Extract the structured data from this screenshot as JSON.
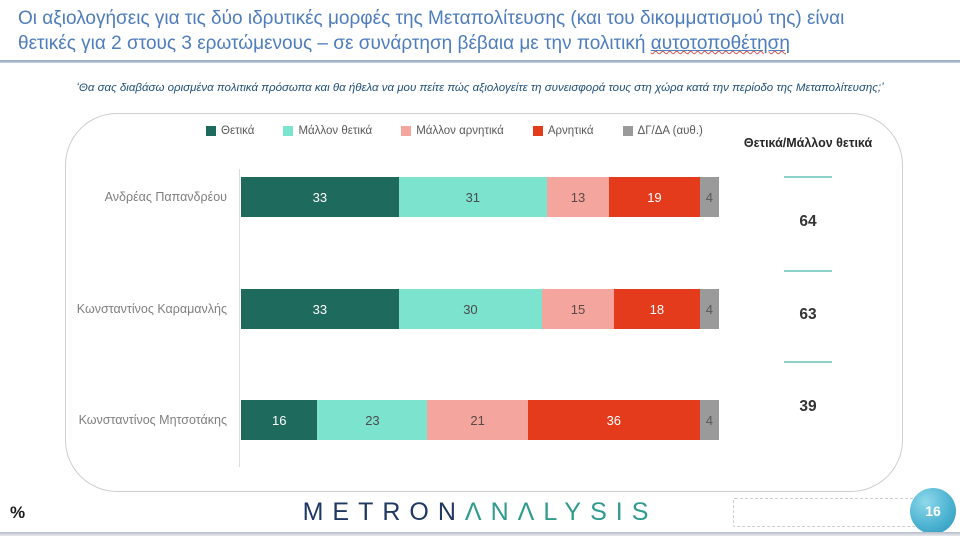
{
  "header": {
    "title_line1": "Οι αξιολογήσεις για τις δύο ιδρυτικές μορφές της Μεταπολίτευσης (και του δικομματισμού της) είναι",
    "title_line2_prefix": "θετικές για 2 στους 3 ερωτώμενους – σε συνάρτηση βέβαια με την πολιτική ",
    "title_underlined_word": "αυτοτοποθέτηση",
    "title_color": "#4e7dbd"
  },
  "subtitle": "‘Θα σας διαβάσω ορισμένα πολιτικά πρόσωπα και θα ήθελα να μου πείτε πώς αξιολογείτε τη συνεισφορά τους στη χώρα κατά την περίοδο της Μεταπολίτευσης;’",
  "chart_data": {
    "type": "bar",
    "orientation": "horizontal",
    "stacked": true,
    "xlim": [
      0,
      100
    ],
    "unit": "%",
    "categories": [
      "Ανδρέας Παπανδρέου",
      "Κωνσταντίνος Καραμανλής",
      "Κωνσταντίνος Μητσοτάκης"
    ],
    "series": [
      {
        "name": "Θετικά",
        "values": [
          33,
          33,
          16
        ],
        "color": "#1e6b5e",
        "label_color": "#ffffff"
      },
      {
        "name": "Μάλλον θετικά",
        "values": [
          31,
          30,
          23
        ],
        "color": "#7ce3cf",
        "label_color": "#4a4a4a"
      },
      {
        "name": "Μάλλον αρνητικά",
        "values": [
          13,
          15,
          21
        ],
        "color": "#f4a59d",
        "label_color": "#5a4a47"
      },
      {
        "name": "Αρνητικά",
        "values": [
          19,
          18,
          36
        ],
        "color": "#e43b1d",
        "label_color": "#ffffff"
      },
      {
        "name": "ΔΓ/ΔΑ (αυθ.)",
        "values": [
          4,
          4,
          4
        ],
        "color": "#9a9a9a",
        "label_color": "#595959"
      }
    ],
    "summary_column": {
      "header": "Θετικά/Μάλλον θετικά",
      "values": [
        64,
        63,
        39
      ],
      "line_color": "#8fd0ca"
    },
    "legend_position": "top",
    "grid": false
  },
  "footer": {
    "percent_label": "%",
    "logo_part1": "METRON",
    "logo_part2": "ΛNΛLYSIS",
    "logo_color1": "#1f3864",
    "logo_color2": "#2f9a8e",
    "page_number": "16"
  }
}
